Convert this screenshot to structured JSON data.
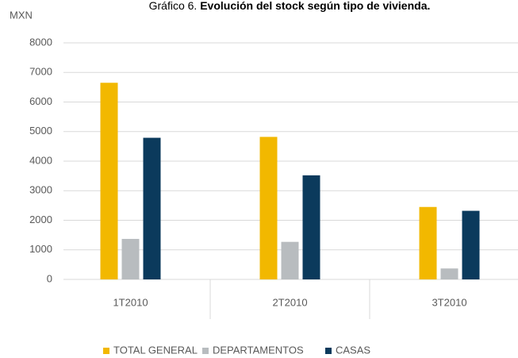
{
  "chart_data": {
    "type": "bar",
    "title_number": "Gráfico 6.",
    "title": "Evolución del stock según tipo de vivienda.",
    "y_label": "MXN",
    "categories": [
      "1T2010",
      "2T2010",
      "3T2010"
    ],
    "series": [
      {
        "name": "TOTAL GENERAL",
        "color": "#f2b800",
        "values": [
          6650,
          4820,
          2450
        ]
      },
      {
        "name": "DEPARTAMENTOS",
        "color": "#b8bcbf",
        "values": [
          1370,
          1270,
          370
        ]
      },
      {
        "name": "CASAS",
        "color": "#0b3a5c",
        "values": [
          4790,
          3520,
          2320
        ]
      }
    ],
    "ylim": [
      0,
      8000
    ],
    "yticks": [
      0,
      1000,
      2000,
      3000,
      4000,
      5000,
      6000,
      7000,
      8000
    ],
    "grid": true,
    "legend": "bottom"
  }
}
